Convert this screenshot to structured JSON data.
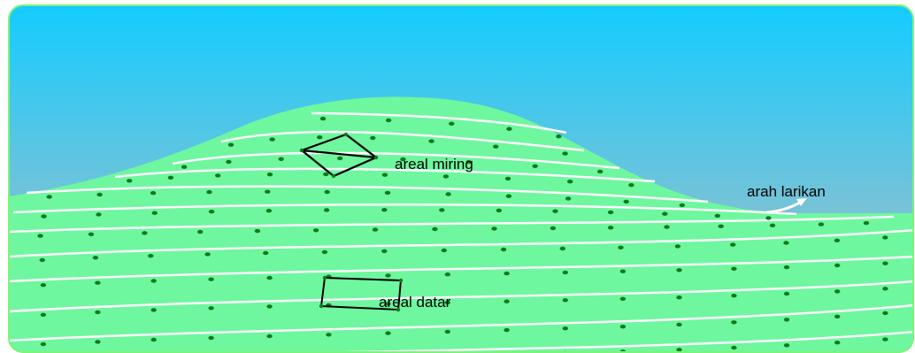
{
  "labels": {
    "slope_area": "areal miring",
    "flat_area": "areal datar",
    "row_direction": "arah larikan"
  },
  "colors": {
    "sky_top": "#14ccff",
    "sky_bottom": "#bcbcbc",
    "ground": "#6ef79e",
    "frame_border": "#7cf37a",
    "row_line": "#ffffff",
    "plant_dot": "#127a1c",
    "outline": "#000000"
  }
}
